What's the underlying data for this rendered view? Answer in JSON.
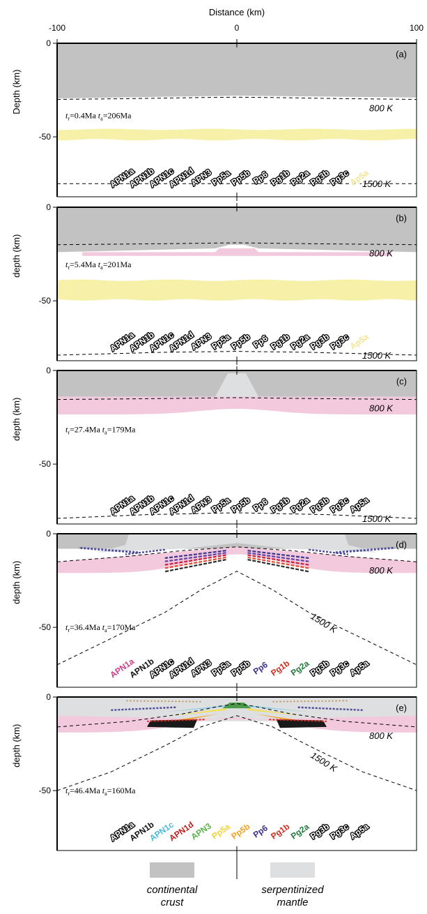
{
  "chart_data": {
    "type": "cross-section",
    "x_label": "Distance (km)",
    "x_range": [
      -100,
      100
    ],
    "x_ticks": [
      "-100",
      "0",
      "100"
    ],
    "y_range": [
      0,
      -82
    ],
    "colors": {
      "crust": "#c2c2c2",
      "serpentinized_mantle": "#dedfe0",
      "band_yellow": "#f6f0a8",
      "band_pink": "#f3c9dd"
    },
    "well_labels": [
      "APN1a",
      "APN1b",
      "APN1c",
      "APN1d",
      "APN3",
      "Pp5a",
      "Pp5b",
      "Pp6",
      "Pg1b",
      "Pg2a",
      "Pg3b",
      "Pg3c",
      "Ap5a"
    ],
    "well_x": [
      -63,
      -52,
      -41,
      -30,
      -19,
      -8,
      3,
      14,
      25,
      36,
      47,
      58,
      69
    ],
    "panels": [
      {
        "letter": "(a)",
        "ylabel": "Depth (km)",
        "y_ticks": [
          "0",
          "-50"
        ],
        "time_label": {
          "tr": "0.4Ma",
          "ta": "206Ma"
        },
        "isotherm_800": {
          "label": "800 K",
          "x": [
            -100,
            -60,
            -20,
            0,
            20,
            60,
            100
          ],
          "y": [
            -30,
            -29.6,
            -29,
            -28.8,
            -29,
            -29.6,
            -30
          ]
        },
        "isotherm_1500": {
          "label": "1500 K",
          "x": [
            -100,
            100
          ],
          "y": [
            -75,
            -75
          ]
        },
        "label_colors": [
          "white",
          "white",
          "white",
          "white",
          "white",
          "white",
          "white",
          "white",
          "white",
          "white",
          "white",
          "white",
          "#f2e494"
        ]
      },
      {
        "letter": "(b)",
        "ylabel": "depth (km)",
        "y_ticks": [
          "0",
          "-50"
        ],
        "time_label": {
          "tr": "5.4Ma",
          "ta": "201Ma"
        },
        "isotherm_800": {
          "label": "800 K",
          "x": [
            -100,
            -40,
            0,
            40,
            100
          ],
          "y": [
            -20,
            -19.5,
            -19,
            -19.5,
            -20
          ]
        },
        "isotherm_1500": {
          "label": "1500 K",
          "x": [
            -100,
            -40,
            0,
            40,
            100
          ],
          "y": [
            -79,
            -77.5,
            -77,
            -77.5,
            -79
          ]
        },
        "label_colors": [
          "white",
          "white",
          "white",
          "white",
          "white",
          "white",
          "white",
          "white",
          "white",
          "white",
          "white",
          "white",
          "#f2e494"
        ]
      },
      {
        "letter": "(c)",
        "ylabel": "depth (km)",
        "y_ticks": [
          "0",
          "-50"
        ],
        "time_label": {
          "tr": "27.4Ma",
          "ta": "179Ma"
        },
        "isotherm_800": {
          "label": "800 K",
          "x": [
            -100,
            -40,
            0,
            40,
            100
          ],
          "y": [
            -15.5,
            -15,
            -14.5,
            -15,
            -15.5
          ]
        },
        "isotherm_1500": {
          "label": "1500 K",
          "x": [
            -100,
            -50,
            0,
            50,
            100
          ],
          "y": [
            -79,
            -77,
            -76,
            -77,
            -79
          ]
        },
        "label_colors": [
          "white",
          "white",
          "white",
          "white",
          "white",
          "white",
          "white",
          "white",
          "white",
          "white",
          "white",
          "white",
          "white"
        ]
      },
      {
        "letter": "(d)",
        "ylabel": "depth (km)",
        "y_ticks": [
          "0",
          "-50"
        ],
        "time_label": {
          "tr": "36.4Ma",
          "ta": "170Ma"
        },
        "isotherm_800": {
          "label": "800 K",
          "x": [
            -100,
            -60,
            -30,
            0,
            30,
            60,
            100
          ],
          "y": [
            -15,
            -12,
            -9,
            -7,
            -9,
            -12,
            -15
          ]
        },
        "isotherm_1500": {
          "label": "1500 K",
          "x": [
            -100,
            -70,
            -40,
            -20,
            0,
            20,
            40,
            70,
            100
          ],
          "y": [
            -70,
            -56,
            -42,
            -30,
            -20,
            -30,
            -42,
            -56,
            -70
          ]
        },
        "label_colors": [
          "#c9408b",
          "#111111",
          "white",
          "white",
          "white",
          "white",
          "white",
          "#3a2e8c",
          "#d42b1f",
          "#1f7a3a",
          "white",
          "white",
          "white"
        ]
      },
      {
        "letter": "(e)",
        "ylabel": "depth (km)",
        "y_ticks": [
          "0",
          "-50"
        ],
        "time_label": {
          "tr": "46.4Ma",
          "ta": "160Ma"
        },
        "isotherm_800": {
          "label": "800 K",
          "x": [
            -100,
            -60,
            -30,
            -10,
            0,
            10,
            30,
            60,
            100
          ],
          "y": [
            -16,
            -13,
            -9,
            -5,
            -3.5,
            -5,
            -9,
            -13,
            -16
          ]
        },
        "isotherm_1500": {
          "label": "1500 K",
          "x": [
            -100,
            -70,
            -40,
            -20,
            0,
            20,
            40,
            70,
            100
          ],
          "y": [
            -50,
            -40,
            -26,
            -16,
            -10,
            -16,
            -26,
            -40,
            -50
          ]
        },
        "label_colors": [
          "white",
          "#111111",
          "#4bb8d8",
          "#c41e1e",
          "#5ab04a",
          "#f2d23a",
          "#f0a020",
          "#3a2e8c",
          "#d42b1f",
          "#1f7a3a",
          "white",
          "white",
          "white"
        ]
      }
    ]
  },
  "legend": {
    "crust": {
      "label_line1": "continental",
      "label_line2": "crust",
      "color": "#c2c2c2"
    },
    "mantle": {
      "label_line1": "serpentinized",
      "label_line2": "mantle",
      "color": "#dedfe0"
    }
  }
}
